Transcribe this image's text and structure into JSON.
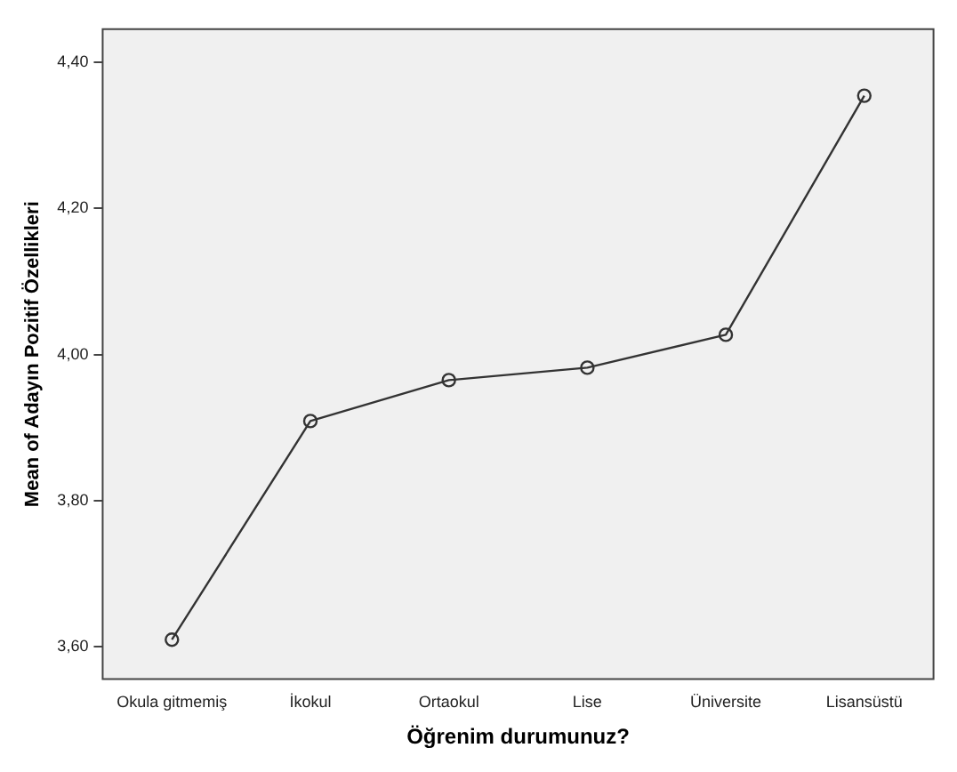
{
  "chart_data": {
    "type": "line",
    "xlabel": "Öğrenim durumunuz?",
    "ylabel": "Mean of Adayın Pozitif Özellikleri",
    "categories": [
      "Okula gitmemiş",
      "İkokul",
      "Ortaokul",
      "Lise",
      "Üniversite",
      "Lisansüstü"
    ],
    "series": [
      {
        "color": "#333333",
        "values": [
          3.61,
          3.909,
          3.965,
          3.982,
          4.027,
          4.354
        ]
      }
    ],
    "ylim": [
      3.556,
      4.445
    ],
    "yticks": [
      {
        "value": 3.6,
        "label": "3,60"
      },
      {
        "value": 3.8,
        "label": "3,80"
      },
      {
        "value": 4.0,
        "label": "4,00"
      },
      {
        "value": 4.2,
        "label": "4,20"
      },
      {
        "value": 4.4,
        "label": "4,40"
      }
    ],
    "grid": false,
    "legend": false,
    "marker": "circle",
    "line_style": "solid"
  }
}
